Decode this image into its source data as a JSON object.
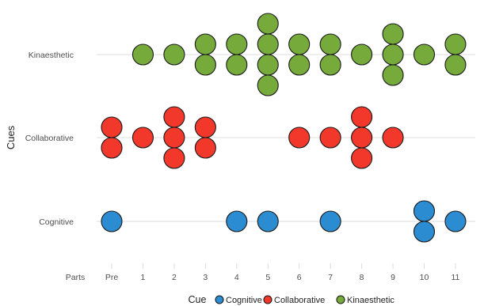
{
  "chart_data": {
    "type": "scatter",
    "subtype": "beeswarm-dotplot",
    "title": "",
    "xlabel": "Parts",
    "ylabel": "Cues",
    "categories": [
      "Pre",
      "1",
      "2",
      "3",
      "4",
      "5",
      "6",
      "7",
      "8",
      "9",
      "10",
      "11"
    ],
    "rows": [
      "Cognitive",
      "Collaborative",
      "Kinaesthetic"
    ],
    "grid": true,
    "legend": {
      "title": "Cue",
      "position": "bottom",
      "entries": [
        {
          "name": "Cognitive",
          "color": "#2b8cd1"
        },
        {
          "name": "Collaborative",
          "color": "#f1382b"
        },
        {
          "name": "Kinaesthetic",
          "color": "#76ab3c"
        }
      ]
    },
    "series": [
      {
        "name": "Kinaesthetic",
        "color": "#76ab3c",
        "counts": [
          0,
          1,
          1,
          2,
          2,
          4,
          2,
          2,
          1,
          3,
          1,
          2
        ]
      },
      {
        "name": "Collaborative",
        "color": "#f1382b",
        "counts": [
          2,
          1,
          3,
          2,
          0,
          0,
          1,
          1,
          3,
          1,
          0,
          0
        ]
      },
      {
        "name": "Cognitive",
        "color": "#2b8cd1",
        "counts": [
          1,
          0,
          0,
          0,
          1,
          1,
          0,
          1,
          0,
          0,
          2,
          1
        ]
      }
    ]
  }
}
